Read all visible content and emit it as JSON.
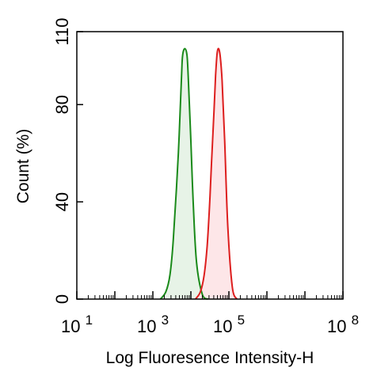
{
  "chart_data": {
    "type": "area",
    "title": "",
    "xlabel": "Log Fluoresence Intensity-H",
    "ylabel": "Count  (%)",
    "x_scale": "log",
    "xlim": [
      10,
      100000000
    ],
    "ylim": [
      0,
      110
    ],
    "x_ticks": [
      {
        "value": 10,
        "base": "10",
        "exp": "1"
      },
      {
        "value": 1000,
        "base": "10",
        "exp": "3"
      },
      {
        "value": 100000,
        "base": "10",
        "exp": "5"
      },
      {
        "value": 100000000,
        "base": "10",
        "exp": "8"
      }
    ],
    "y_ticks": [
      {
        "value": 0,
        "label": "0"
      },
      {
        "value": 40,
        "label": "40"
      },
      {
        "value": 80,
        "label": "80"
      },
      {
        "value": 110,
        "label": "110"
      }
    ],
    "grid": false,
    "legend": "none",
    "series": [
      {
        "color": "#1a8a1a",
        "fill": "#e3f1e3",
        "x": [
          1580,
          2200,
          2820,
          3470,
          4680,
          5620,
          6030,
          6920,
          7940,
          8700,
          10000,
          11500,
          14100,
          20000,
          28200
        ],
        "y": [
          0,
          3,
          10,
          25,
          60,
          90,
          100,
          103,
          100,
          88,
          65,
          40,
          15,
          2,
          0
        ]
      },
      {
        "color": "#dd1e1e",
        "fill": "#fde2e4",
        "x": [
          13200,
          17800,
          22400,
          26900,
          30900,
          34700,
          40700,
          44700,
          49000,
          53700,
          58900,
          66100,
          77600,
          93300,
          123000,
          162000
        ],
        "y": [
          0,
          3,
          10,
          22,
          38,
          55,
          78,
          92,
          101,
          103,
          100,
          90,
          65,
          30,
          5,
          0
        ]
      }
    ]
  }
}
